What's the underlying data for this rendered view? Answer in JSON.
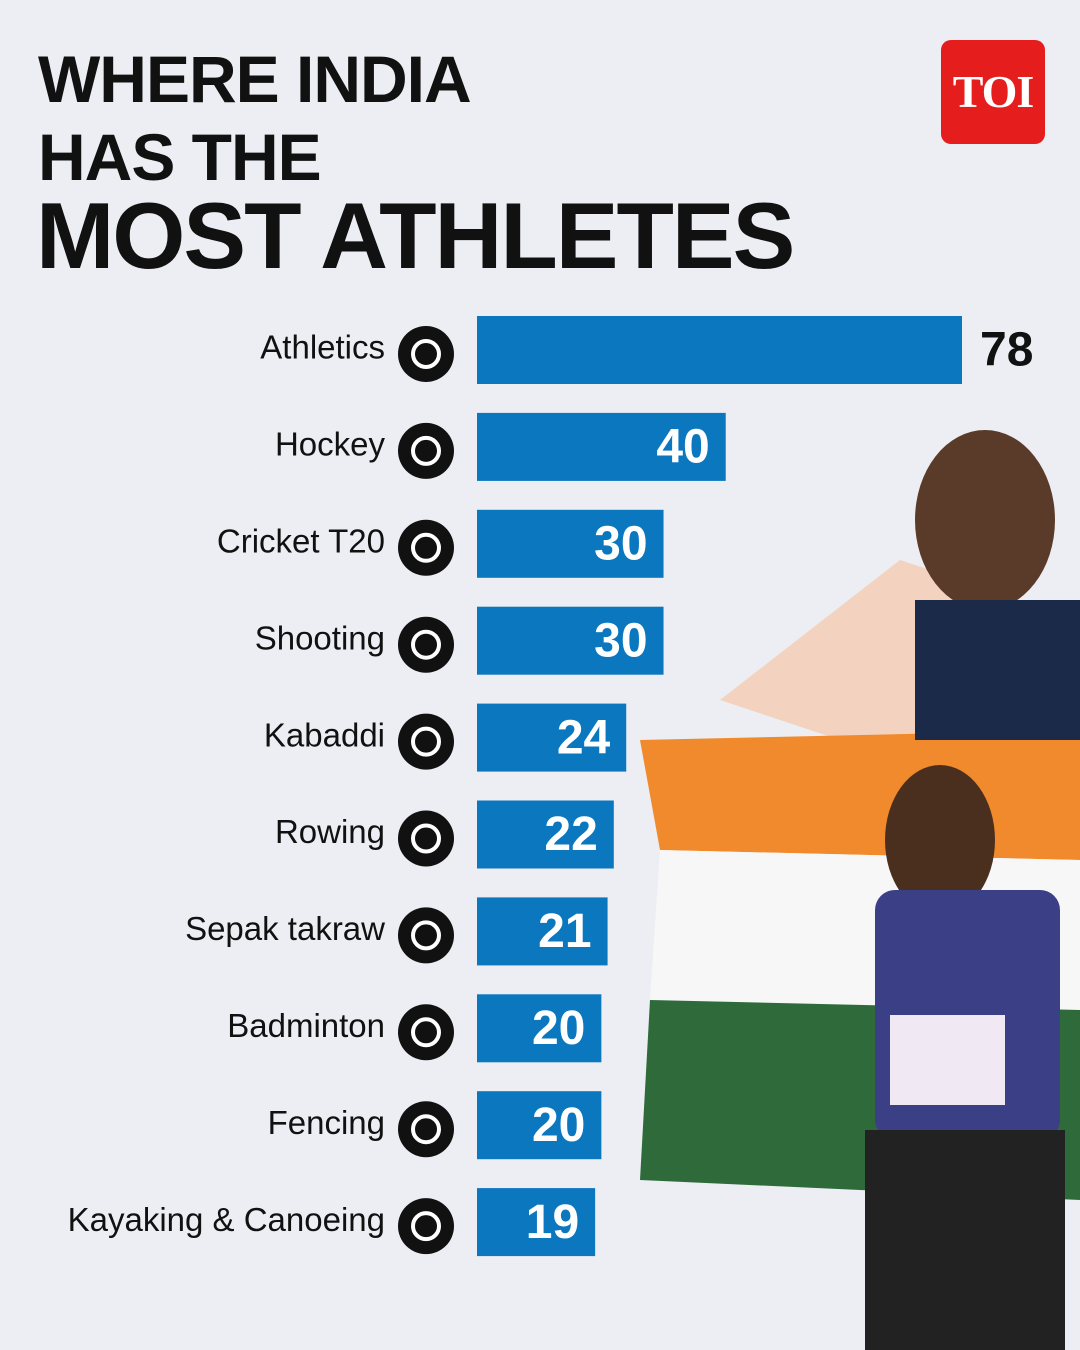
{
  "logo": "TOI",
  "chart_data": {
    "type": "bar",
    "orientation": "horizontal",
    "title": "WHERE INDIA HAS THE",
    "subtitle": "MOST ATHLETES",
    "categories": [
      "Athletics",
      "Hockey",
      "Cricket T20",
      "Shooting",
      "Kabaddi",
      "Rowing",
      "Sepak takraw",
      "Badminton",
      "Fencing",
      "Kayaking & Canoeing"
    ],
    "values": [
      78,
      40,
      30,
      30,
      24,
      22,
      21,
      20,
      20,
      19
    ],
    "color": "#0a77bf",
    "xlim": [
      0,
      78
    ]
  }
}
